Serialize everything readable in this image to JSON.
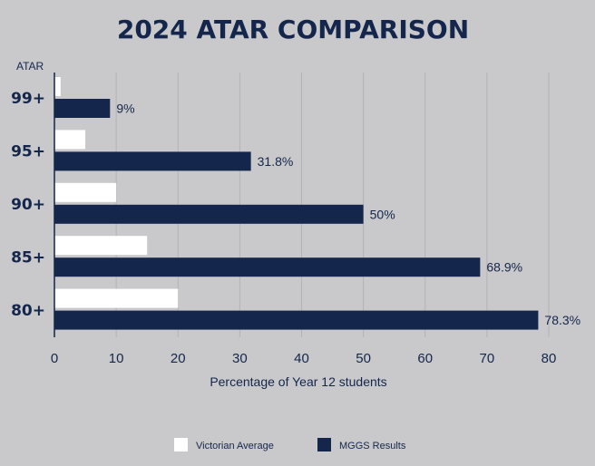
{
  "chart_data": {
    "type": "bar",
    "orientation": "horizontal",
    "title": "2024 ATAR COMPARISON",
    "ylabel": "ATAR",
    "xlabel": "Percentage of Year 12 students",
    "categories": [
      "99+",
      "95+",
      "90+",
      "85+",
      "80+"
    ],
    "series": [
      {
        "name": "Victorian Average",
        "color": "#ffffff",
        "values": [
          1,
          5,
          10,
          15,
          20
        ],
        "labels": [
          "",
          "",
          "",
          "",
          ""
        ]
      },
      {
        "name": "MGGS Results",
        "color": "#14264b",
        "values": [
          9,
          31.8,
          50,
          68.9,
          78.3
        ],
        "labels": [
          "9%",
          "31.8%",
          "50%",
          "68.9%",
          "78.3%"
        ]
      }
    ],
    "xlim": [
      0,
      80
    ],
    "xticks": [
      "0",
      "10",
      "20",
      "30",
      "40",
      "50",
      "60",
      "70",
      "80"
    ],
    "grid": "vertical",
    "legend_position": "bottom"
  }
}
